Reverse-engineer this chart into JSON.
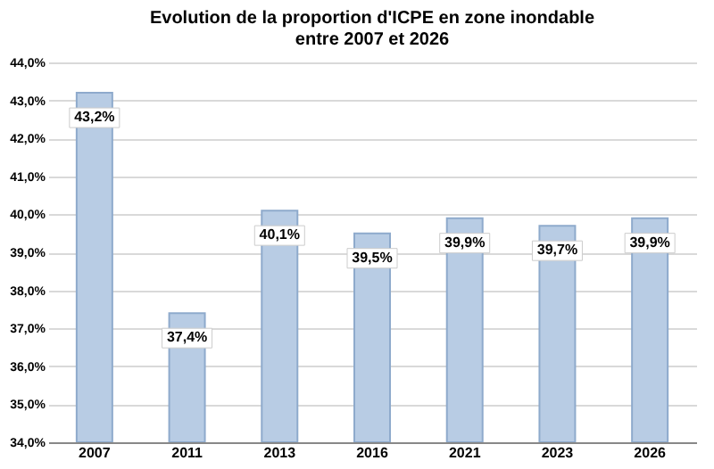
{
  "chart_data": {
    "type": "bar",
    "title": "Evolution de la proportion d'ICPE en zone inondable\nentre 2007 et 2026",
    "categories": [
      "2007",
      "2011",
      "2013",
      "2016",
      "2021",
      "2023",
      "2026"
    ],
    "values": [
      43.2,
      37.4,
      40.1,
      39.5,
      39.9,
      39.7,
      39.9
    ],
    "value_labels": [
      "43,2%",
      "37,4%",
      "40,1%",
      "39,5%",
      "39,9%",
      "39,7%",
      "39,9%"
    ],
    "color": "#b8cce4",
    "ylim": [
      34,
      44
    ],
    "yticks": [
      {
        "value": 34,
        "label": "34,0%"
      },
      {
        "value": 35,
        "label": "35,0%"
      },
      {
        "value": 36,
        "label": "36,0%"
      },
      {
        "value": 37,
        "label": "37,0%"
      },
      {
        "value": 38,
        "label": "38,0%"
      },
      {
        "value": 39,
        "label": "39,0%"
      },
      {
        "value": 40,
        "label": "40,0%"
      },
      {
        "value": 41,
        "label": "41,0%"
      },
      {
        "value": 42,
        "label": "42,0%"
      },
      {
        "value": 43,
        "label": "43,0%"
      },
      {
        "value": 44,
        "label": "44,0%"
      }
    ],
    "grid": true
  }
}
